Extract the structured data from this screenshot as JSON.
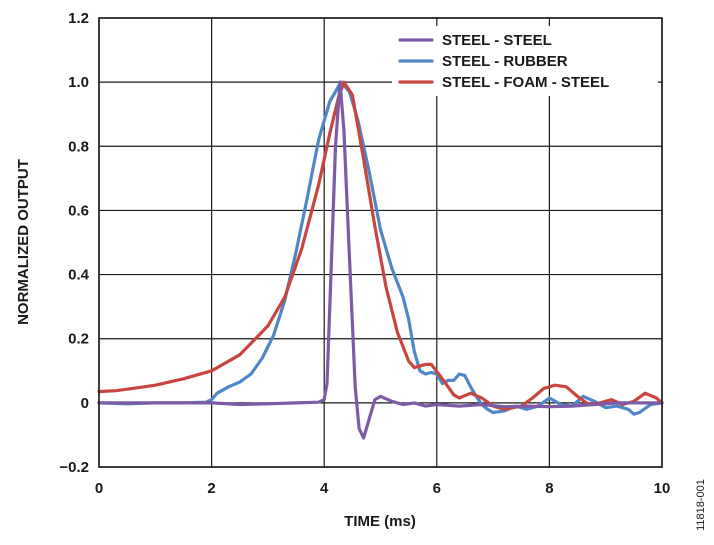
{
  "chart_data": {
    "type": "line",
    "xlabel": "TIME (ms)",
    "ylabel": "NORMALIZED OUTPUT",
    "xlim": [
      0,
      10
    ],
    "ylim": [
      -0.2,
      1.2
    ],
    "x_ticks": [
      "0",
      "2",
      "4",
      "6",
      "8",
      "10"
    ],
    "y_ticks": [
      "−0.2",
      "0",
      "0.2",
      "0.4",
      "0.6",
      "0.8",
      "1.0",
      "1.2"
    ],
    "grid": true,
    "legend_position": "top-right",
    "series": [
      {
        "name": "STEEL - STEEL",
        "color": "#7d5ba6",
        "points": [
          [
            0,
            0
          ],
          [
            1,
            0
          ],
          [
            2,
            0
          ],
          [
            2.5,
            -0.005
          ],
          [
            3,
            -0.003
          ],
          [
            3.5,
            0
          ],
          [
            3.9,
            0.002
          ],
          [
            4.0,
            0.01
          ],
          [
            4.05,
            0.06
          ],
          [
            4.1,
            0.3
          ],
          [
            4.2,
            0.8
          ],
          [
            4.28,
            1.0
          ],
          [
            4.35,
            0.85
          ],
          [
            4.45,
            0.45
          ],
          [
            4.55,
            0.05
          ],
          [
            4.62,
            -0.08
          ],
          [
            4.7,
            -0.11
          ],
          [
            4.8,
            -0.05
          ],
          [
            4.9,
            0.01
          ],
          [
            5.0,
            0.02
          ],
          [
            5.2,
            0.005
          ],
          [
            5.4,
            -0.005
          ],
          [
            5.6,
            0.0
          ],
          [
            5.8,
            -0.01
          ],
          [
            6.0,
            -0.005
          ],
          [
            6.4,
            -0.01
          ],
          [
            6.8,
            -0.005
          ],
          [
            7.2,
            -0.012
          ],
          [
            7.6,
            -0.01
          ],
          [
            8.0,
            -0.012
          ],
          [
            8.4,
            -0.01
          ],
          [
            8.8,
            -0.005
          ],
          [
            9.2,
            0.0
          ],
          [
            9.6,
            0.0
          ],
          [
            10,
            0.0
          ]
        ]
      },
      {
        "name": "STEEL - RUBBER",
        "color": "#4f86c6",
        "points": [
          [
            0,
            0
          ],
          [
            0.5,
            -0.003
          ],
          [
            1,
            0.0
          ],
          [
            1.5,
            0.0
          ],
          [
            1.9,
            0.002
          ],
          [
            2.0,
            0.01
          ],
          [
            2.1,
            0.03
          ],
          [
            2.3,
            0.05
          ],
          [
            2.5,
            0.065
          ],
          [
            2.7,
            0.09
          ],
          [
            2.9,
            0.14
          ],
          [
            3.1,
            0.21
          ],
          [
            3.3,
            0.32
          ],
          [
            3.5,
            0.47
          ],
          [
            3.7,
            0.64
          ],
          [
            3.9,
            0.82
          ],
          [
            4.1,
            0.94
          ],
          [
            4.3,
            1.0
          ],
          [
            4.45,
            0.97
          ],
          [
            4.6,
            0.88
          ],
          [
            4.8,
            0.72
          ],
          [
            5.0,
            0.54
          ],
          [
            5.2,
            0.42
          ],
          [
            5.4,
            0.33
          ],
          [
            5.5,
            0.26
          ],
          [
            5.6,
            0.16
          ],
          [
            5.7,
            0.1
          ],
          [
            5.8,
            0.09
          ],
          [
            5.9,
            0.095
          ],
          [
            6.0,
            0.09
          ],
          [
            6.1,
            0.06
          ],
          [
            6.2,
            0.07
          ],
          [
            6.3,
            0.07
          ],
          [
            6.4,
            0.09
          ],
          [
            6.5,
            0.085
          ],
          [
            6.6,
            0.05
          ],
          [
            6.7,
            0.02
          ],
          [
            6.8,
            -0.005
          ],
          [
            6.9,
            -0.02
          ],
          [
            7.0,
            -0.03
          ],
          [
            7.2,
            -0.025
          ],
          [
            7.4,
            -0.01
          ],
          [
            7.6,
            -0.02
          ],
          [
            7.8,
            -0.01
          ],
          [
            8.0,
            0.015
          ],
          [
            8.2,
            -0.005
          ],
          [
            8.4,
            -0.01
          ],
          [
            8.6,
            0.02
          ],
          [
            8.8,
            0.005
          ],
          [
            9.0,
            -0.015
          ],
          [
            9.2,
            -0.01
          ],
          [
            9.4,
            -0.02
          ],
          [
            9.5,
            -0.035
          ],
          [
            9.6,
            -0.03
          ],
          [
            9.8,
            -0.005
          ],
          [
            10,
            0.0
          ]
        ]
      },
      {
        "name": "STEEL - FOAM - STEEL",
        "color": "#c8463f",
        "points": [
          [
            0,
            0.035
          ],
          [
            0.3,
            0.038
          ],
          [
            0.6,
            0.045
          ],
          [
            1.0,
            0.055
          ],
          [
            1.5,
            0.075
          ],
          [
            2.0,
            0.1
          ],
          [
            2.5,
            0.15
          ],
          [
            3.0,
            0.24
          ],
          [
            3.3,
            0.33
          ],
          [
            3.6,
            0.48
          ],
          [
            3.9,
            0.68
          ],
          [
            4.1,
            0.84
          ],
          [
            4.25,
            0.95
          ],
          [
            4.35,
            1.0
          ],
          [
            4.5,
            0.96
          ],
          [
            4.7,
            0.76
          ],
          [
            4.9,
            0.55
          ],
          [
            5.1,
            0.36
          ],
          [
            5.3,
            0.22
          ],
          [
            5.5,
            0.13
          ],
          [
            5.6,
            0.11
          ],
          [
            5.8,
            0.12
          ],
          [
            5.9,
            0.12
          ],
          [
            6.1,
            0.075
          ],
          [
            6.3,
            0.025
          ],
          [
            6.4,
            0.015
          ],
          [
            6.6,
            0.03
          ],
          [
            6.8,
            0.015
          ],
          [
            7.0,
            -0.01
          ],
          [
            7.2,
            -0.02
          ],
          [
            7.5,
            -0.01
          ],
          [
            7.7,
            0.015
          ],
          [
            7.9,
            0.045
          ],
          [
            8.1,
            0.055
          ],
          [
            8.3,
            0.05
          ],
          [
            8.5,
            0.02
          ],
          [
            8.7,
            -0.005
          ],
          [
            8.9,
            0.0
          ],
          [
            9.1,
            0.01
          ],
          [
            9.3,
            -0.005
          ],
          [
            9.5,
            0.005
          ],
          [
            9.7,
            0.03
          ],
          [
            9.9,
            0.015
          ],
          [
            10,
            0.0
          ]
        ]
      }
    ]
  },
  "figure_id": "11818-001"
}
